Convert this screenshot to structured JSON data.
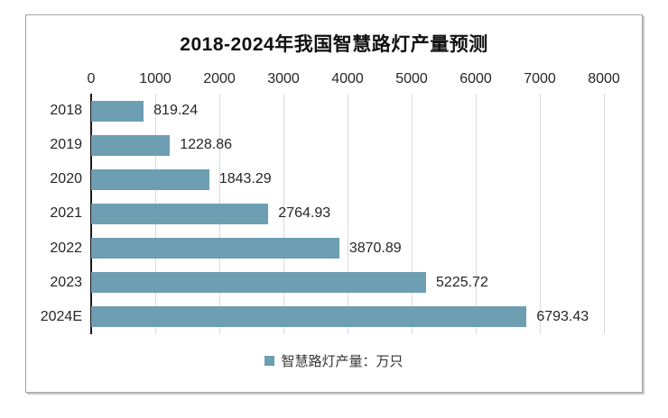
{
  "chart_data": {
    "type": "bar",
    "orientation": "horizontal",
    "title": "2018-2024年我国智慧路灯产量预测",
    "categories": [
      "2018",
      "2019",
      "2020",
      "2021",
      "2022",
      "2023",
      "2024E"
    ],
    "values": [
      819.24,
      1228.86,
      1843.29,
      2764.93,
      3870.89,
      5225.72,
      6793.43
    ],
    "value_labels": [
      "819.24",
      "1228.86",
      "1843.29",
      "2764.93",
      "3870.89",
      "5225.72",
      "6793.43"
    ],
    "xlim": [
      0,
      8000
    ],
    "x_ticks": [
      0,
      1000,
      2000,
      3000,
      4000,
      5000,
      6000,
      7000,
      8000
    ],
    "grid": true,
    "legend": {
      "label": "智慧路灯产量：万只",
      "position": "bottom"
    },
    "colors": {
      "bar": "#6d9eb2",
      "grid": "#d9d9d9",
      "axis": "#1a1a1a",
      "text": "#262626",
      "frame_border": "#a3a3a3"
    }
  }
}
